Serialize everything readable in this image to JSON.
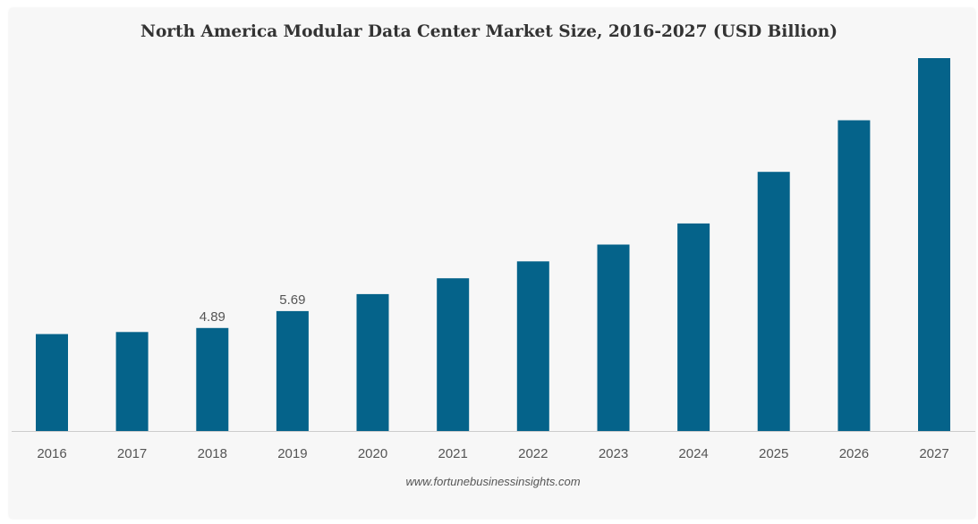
{
  "chart_data": {
    "type": "bar",
    "title": "North America Modular Data Center Market Size, 2016-2027 (USD Billion)",
    "xlabel": "",
    "ylabel": "",
    "categories": [
      "2016",
      "2017",
      "2018",
      "2019",
      "2020",
      "2021",
      "2022",
      "2023",
      "2024",
      "2025",
      "2026",
      "2027"
    ],
    "values": [
      4.6,
      4.7,
      4.89,
      5.69,
      6.5,
      7.25,
      8.05,
      8.85,
      9.85,
      12.3,
      14.75,
      17.7
    ],
    "data_labels": [
      null,
      null,
      "4.89",
      "5.69",
      null,
      null,
      null,
      null,
      null,
      null,
      null,
      null
    ],
    "ylim": [
      0,
      18
    ],
    "grid": false,
    "legend": "none",
    "bar_color": "#05638a",
    "axis_color": "#cccccc"
  },
  "source_text": "www.fortunebusinessinsights.com"
}
